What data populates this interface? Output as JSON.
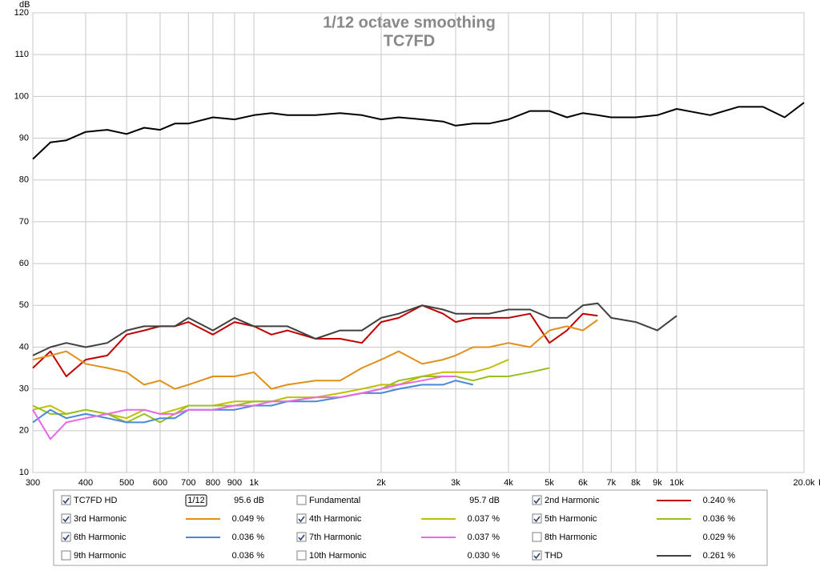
{
  "chart_data": {
    "type": "line",
    "title": "1/12 octave smoothing",
    "subtitle": "TC7FD",
    "y_label": "dB",
    "x_label": "Hz",
    "x_scale": "log",
    "grid": true,
    "smoothing_icon": "1/12",
    "xlim": [
      300,
      20000
    ],
    "ylim": [
      10,
      120
    ],
    "yticks": [
      10,
      20,
      30,
      40,
      50,
      60,
      70,
      80,
      90,
      100,
      110,
      120
    ],
    "xticks": [
      300,
      400,
      500,
      600,
      700,
      800,
      900,
      {
        "value": 1000,
        "label": "1k"
      },
      {
        "value": 2000,
        "label": "2k"
      },
      {
        "value": 3000,
        "label": "3k"
      },
      {
        "value": 4000,
        "label": "4k"
      },
      {
        "value": 5000,
        "label": "5k"
      },
      {
        "value": 6000,
        "label": "6k"
      },
      {
        "value": 7000,
        "label": "7k"
      },
      {
        "value": 8000,
        "label": "8k"
      },
      {
        "value": 9000,
        "label": "9k"
      },
      {
        "value": 10000,
        "label": "10k"
      },
      {
        "value": 20000,
        "label": "20.0k"
      }
    ],
    "x": [
      300,
      330,
      360,
      400,
      450,
      500,
      550,
      600,
      650,
      700,
      800,
      900,
      1000,
      1100,
      1200,
      1400,
      1600,
      1800,
      2000,
      2200,
      2500,
      2800,
      3000,
      3300,
      3600,
      4000,
      4500,
      5000,
      5500,
      6000,
      6500,
      7000,
      8000,
      9000,
      10000,
      12000,
      14000,
      16000,
      18000,
      20000
    ],
    "series": [
      {
        "name": "TC7FD HD",
        "color": "#000000",
        "checked": true,
        "reading": "95.6 dB",
        "values": [
          85,
          89,
          89.5,
          91.5,
          92,
          91,
          92.5,
          92,
          93.5,
          93.5,
          95,
          94.5,
          95.5,
          96,
          95.5,
          95.5,
          96,
          95.5,
          94.5,
          95,
          94.5,
          94,
          93,
          93.5,
          93.5,
          94.5,
          96.5,
          96.5,
          95,
          96,
          95.5,
          95,
          95,
          95.5,
          97,
          95.5,
          97.5,
          97.5,
          95,
          98.5
        ]
      },
      {
        "name": "Fundamental",
        "color": "#a05a00",
        "checked": false,
        "reading": "95.7 dB"
      },
      {
        "name": "2nd Harmonic",
        "color": "#c00000",
        "checked": true,
        "reading": "0.240 %",
        "values": [
          35,
          39,
          33,
          37,
          38,
          43,
          44,
          45,
          45,
          46,
          43,
          46,
          45,
          43,
          44,
          42,
          42,
          41,
          46,
          47,
          50,
          48,
          46,
          47,
          47,
          47,
          48,
          41,
          44,
          48,
          47.5,
          null,
          null,
          null,
          null,
          null,
          null,
          null,
          null,
          null
        ]
      },
      {
        "name": "3rd Harmonic",
        "color": "#e09018",
        "checked": true,
        "reading": "0.049 %",
        "values": [
          37,
          38,
          39,
          36,
          35,
          34,
          31,
          32,
          30,
          31,
          33,
          33,
          34,
          30,
          31,
          32,
          32,
          35,
          37,
          39,
          36,
          37,
          38,
          40,
          40,
          41,
          40,
          44,
          45,
          44,
          46.5,
          null,
          null,
          null,
          null,
          null,
          null,
          null,
          null,
          null
        ]
      },
      {
        "name": "4th Harmonic",
        "color": "#c0c000",
        "checked": true,
        "reading": "0.037 %",
        "values": [
          25,
          26,
          24,
          25,
          24,
          23,
          25,
          24,
          25,
          26,
          26,
          27,
          27,
          27,
          28,
          28,
          29,
          30,
          31,
          31,
          33,
          34,
          34,
          34,
          35,
          37,
          null,
          null,
          null,
          null,
          null,
          null,
          null,
          null,
          null,
          null,
          null,
          null,
          null,
          null
        ]
      },
      {
        "name": "5th Harmonic",
        "color": "#98c020",
        "checked": true,
        "reading": "0.036 %",
        "values": [
          26,
          24,
          24,
          25,
          24,
          22,
          24,
          22,
          24,
          26,
          26,
          26,
          27,
          27,
          27,
          28,
          28,
          29,
          30,
          32,
          33,
          33,
          33,
          32,
          33,
          33,
          34,
          35,
          null,
          null,
          null,
          null,
          null,
          null,
          null,
          null,
          null,
          null,
          null,
          null
        ]
      },
      {
        "name": "6th Harmonic",
        "color": "#4a88d8",
        "checked": true,
        "reading": "0.036 %",
        "values": [
          22,
          25,
          23,
          24,
          23,
          22,
          22,
          23,
          23,
          25,
          25,
          25,
          26,
          26,
          27,
          27,
          28,
          29,
          29,
          30,
          31,
          31,
          32,
          31,
          null,
          null,
          null,
          null,
          null,
          null,
          null,
          null,
          null,
          null,
          null,
          null,
          null,
          null,
          null,
          null
        ]
      },
      {
        "name": "7th Harmonic",
        "color": "#e868e8",
        "checked": true,
        "reading": "0.037 %",
        "values": [
          25,
          18,
          22,
          23,
          24,
          25,
          25,
          24,
          24,
          25,
          25,
          26,
          26,
          27,
          27,
          28,
          28,
          29,
          30,
          31,
          32,
          33,
          33,
          null,
          null,
          null,
          null,
          null,
          null,
          null,
          null,
          null,
          null,
          null,
          null,
          null,
          null,
          null,
          null,
          null
        ]
      },
      {
        "name": "8th Harmonic",
        "color": "#808080",
        "checked": false,
        "reading": "0.029 %"
      },
      {
        "name": "9th Harmonic",
        "color": "#00a8b8",
        "checked": false,
        "reading": "0.036 %"
      },
      {
        "name": "10th Harmonic",
        "color": "#808000",
        "checked": false,
        "reading": "0.030 %"
      },
      {
        "name": "THD",
        "color": "#404040",
        "checked": true,
        "reading": "0.261 %",
        "values": [
          38,
          40,
          41,
          40,
          41,
          44,
          45,
          45,
          45,
          47,
          44,
          47,
          45,
          45,
          45,
          42,
          44,
          44,
          47,
          48,
          50,
          49,
          48,
          48,
          48,
          49,
          49,
          47,
          47,
          50,
          50.5,
          47,
          46,
          44,
          47.5,
          null,
          null,
          null,
          null,
          null
        ]
      }
    ]
  }
}
